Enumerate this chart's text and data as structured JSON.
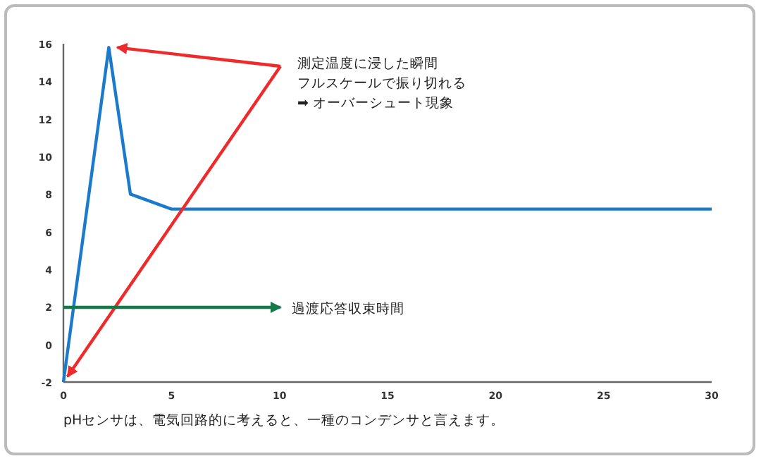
{
  "chart_data": {
    "type": "line",
    "x": [
      0,
      2.1,
      3.1,
      5,
      30
    ],
    "series": [
      {
        "color": "#1a7acb",
        "values": [
          -2,
          15.8,
          8,
          7.2,
          7.2
        ]
      }
    ],
    "xlim": [
      0,
      30
    ],
    "ylim": [
      -2,
      16
    ],
    "xticks": [
      0,
      5,
      10,
      15,
      20,
      25,
      30
    ],
    "yticks": [
      -2,
      0,
      2,
      4,
      6,
      8,
      10,
      12,
      14,
      16
    ],
    "grid": false,
    "marker": "none",
    "line_style": "solid",
    "annotations": [
      "測定温度に浸した瞬間",
      "フルスケールで振り切れる",
      "➡ オーバーシュート現象",
      "過渡応答収束時間",
      "pHセンサは、電気回路的に考えると、一種のコンデンサと言えます。"
    ]
  }
}
